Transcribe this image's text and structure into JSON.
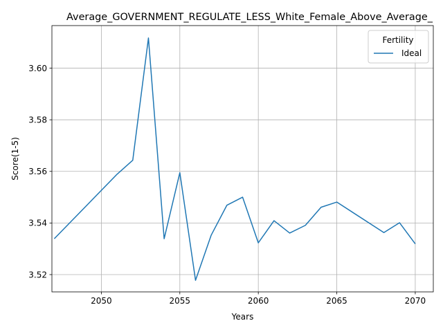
{
  "chart_data": {
    "type": "line",
    "title": "Average_GOVERNMENT_REGULATE_LESS_White_Female_Above_Average_",
    "xlabel": "Years",
    "ylabel": "Score(1-5)",
    "xlim": [
      2046.85,
      2071.15
    ],
    "ylim": [
      3.5133,
      3.6165
    ],
    "xticks": [
      2050,
      2055,
      2060,
      2065,
      2070
    ],
    "yticks": [
      3.52,
      3.54,
      3.56,
      3.58,
      3.6
    ],
    "xtick_labels": [
      "2050",
      "2055",
      "2060",
      "2065",
      "2070"
    ],
    "ytick_labels": [
      "3.52",
      "3.54",
      "3.56",
      "3.58",
      "3.60"
    ],
    "grid": true,
    "legend": {
      "title": "Fertility",
      "position": "top-right"
    },
    "colors": {
      "line": "#1f77b4",
      "grid": "#b0b0b0"
    },
    "series": [
      {
        "name": "Ideal",
        "x": [
          2047,
          2051,
          2052,
          2053,
          2054,
          2055,
          2056,
          2057,
          2058,
          2059,
          2060,
          2061,
          2062,
          2063,
          2064,
          2065,
          2068,
          2069,
          2070
        ],
        "y": [
          3.5339,
          3.5589,
          3.5643,
          3.6117,
          3.5339,
          3.5595,
          3.5178,
          3.5353,
          3.5469,
          3.55,
          3.5323,
          3.5409,
          3.5361,
          3.5391,
          3.5461,
          3.5481,
          3.5363,
          3.5401,
          3.5319
        ]
      }
    ]
  }
}
